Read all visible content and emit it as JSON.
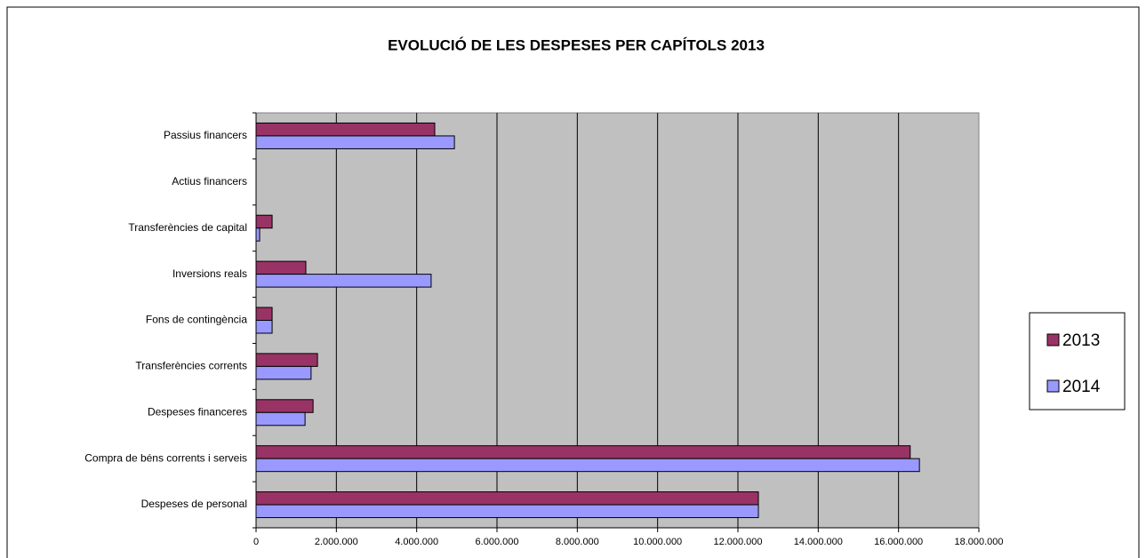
{
  "chart_data": {
    "type": "hbar",
    "title": "EVOLUCIÓ DE LES DESPESES PER CAPÍTOLS 2013",
    "categories": [
      "Despeses de personal",
      "Compra de béns corrents i serveis",
      "Despeses financeres",
      "Transferències corrents",
      "Fons de contingència",
      "Inversions reals",
      "Transferències de capital",
      "Actius financers",
      "Passius financers"
    ],
    "series": [
      {
        "name": "2013",
        "color": "#993366",
        "values": [
          12510000,
          16290000,
          1420000,
          1530000,
          400000,
          1240000,
          400000,
          0,
          4450000
        ]
      },
      {
        "name": "2014",
        "color": "#9999ff",
        "values": [
          12510000,
          16520000,
          1220000,
          1370000,
          400000,
          4360000,
          90000,
          0,
          4940000
        ]
      }
    ],
    "xlim": [
      0,
      18000000
    ],
    "xticks": [
      0,
      {
        "value": 2000000,
        "label": "2.000.000"
      },
      {
        "value": 4000000,
        "label": "4.000.000"
      },
      {
        "value": 6000000,
        "label": "6.000.000"
      },
      {
        "value": 8000000,
        "label": "8.000.000"
      },
      {
        "value": 10000000,
        "label": "10.000.000"
      },
      {
        "value": 12000000,
        "label": "12.000.000"
      },
      {
        "value": 14000000,
        "label": "14.000.000"
      },
      {
        "value": 16000000,
        "label": "16.000.000"
      },
      {
        "value": 18000000,
        "label": "18.000.000"
      }
    ],
    "grid": true,
    "legend": "right"
  }
}
